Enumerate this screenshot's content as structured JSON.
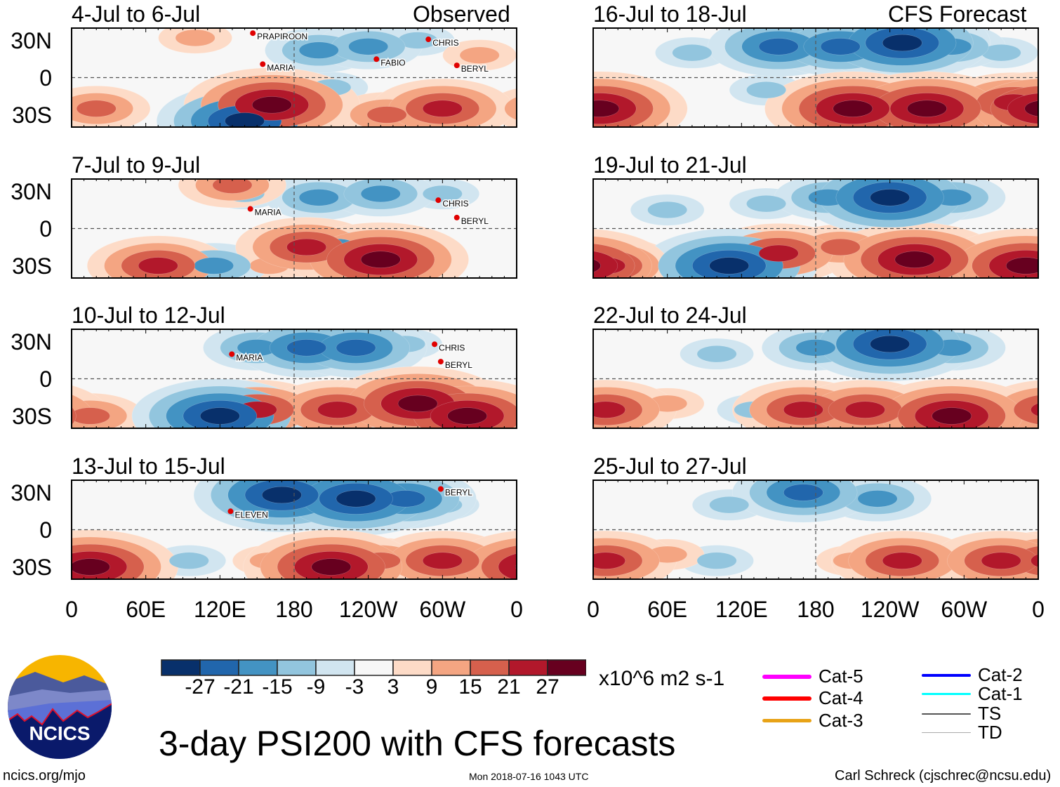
{
  "colors": {
    "levels": [
      -27,
      -21,
      -15,
      -9,
      -3,
      3,
      9,
      15,
      21,
      27
    ],
    "fills": [
      "#08306b",
      "#2166ac",
      "#4393c3",
      "#92c5de",
      "#d1e5f0",
      "#f7f7f7",
      "#fddbc7",
      "#f4a582",
      "#d6604d",
      "#b2182b",
      "#67001f"
    ]
  },
  "columns": {
    "observed_label": "Observed",
    "forecast_label": "CFS Forecast"
  },
  "y_ticks": [
    "30N",
    "0",
    "30S"
  ],
  "x_ticks": [
    "0",
    "60E",
    "120E",
    "180",
    "120W",
    "60W",
    "0"
  ],
  "chart_data": [
    {
      "title": "4-Jul to 6-Jul",
      "column": "observed",
      "centers": [
        [
          200,
          22,
          -15
        ],
        [
          240,
          25,
          -15
        ],
        [
          280,
          30,
          -9
        ],
        [
          210,
          -8,
          -9
        ],
        [
          140,
          -35,
          -27
        ],
        [
          162,
          -22,
          27
        ],
        [
          255,
          -30,
          15
        ],
        [
          300,
          -25,
          21
        ],
        [
          20,
          -25,
          15
        ],
        [
          100,
          32,
          9
        ],
        [
          330,
          18,
          9
        ]
      ],
      "storms": [
        {
          "name": "PRAPIROON",
          "lon": 150,
          "lat": 33
        },
        {
          "name": "MARIA",
          "lon": 158,
          "lat": 8
        },
        {
          "name": "FABIO",
          "lon": 250,
          "lat": 12
        },
        {
          "name": "CHRIS",
          "lon": 292,
          "lat": 28
        },
        {
          "name": "BERYL",
          "lon": 315,
          "lat": 7
        }
      ]
    },
    {
      "title": "7-Jul to 9-Jul",
      "column": "observed",
      "centers": [
        [
          200,
          25,
          -15
        ],
        [
          250,
          28,
          -15
        ],
        [
          140,
          28,
          -9
        ],
        [
          300,
          28,
          -9
        ],
        [
          250,
          -25,
          27
        ],
        [
          190,
          -15,
          21
        ],
        [
          215,
          -15,
          -15
        ],
        [
          115,
          -30,
          -15
        ],
        [
          70,
          -30,
          21
        ],
        [
          130,
          35,
          15
        ],
        [
          160,
          -30,
          9
        ]
      ],
      "storms": [
        {
          "name": "CHRIS",
          "lon": 300,
          "lat": 20
        },
        {
          "name": "MARIA",
          "lon": 148,
          "lat": 13
        },
        {
          "name": "BERYL",
          "lon": 315,
          "lat": 6
        }
      ]
    },
    {
      "title": "10-Jul to 12-Jul",
      "column": "observed",
      "centers": [
        [
          190,
          25,
          -21
        ],
        [
          230,
          25,
          -21
        ],
        [
          150,
          25,
          -15
        ],
        [
          270,
          28,
          -9
        ],
        [
          120,
          -30,
          -27
        ],
        [
          150,
          -25,
          21
        ],
        [
          215,
          -25,
          21
        ],
        [
          255,
          -20,
          -15
        ],
        [
          280,
          -20,
          27
        ],
        [
          320,
          -30,
          27
        ],
        [
          15,
          -30,
          15
        ]
      ],
      "storms": [
        {
          "name": "CHRIS",
          "lon": 297,
          "lat": 25
        },
        {
          "name": "MARIA",
          "lon": 133,
          "lat": 17
        },
        {
          "name": "BERYL",
          "lon": 302,
          "lat": 11
        }
      ]
    },
    {
      "title": "13-Jul to 15-Jul",
      "column": "observed",
      "centers": [
        [
          170,
          28,
          -27
        ],
        [
          230,
          25,
          -27
        ],
        [
          270,
          25,
          -21
        ],
        [
          300,
          20,
          -9
        ],
        [
          15,
          -30,
          27
        ],
        [
          210,
          -30,
          27
        ],
        [
          300,
          -25,
          21
        ],
        [
          95,
          -25,
          -9
        ],
        [
          160,
          -25,
          9
        ],
        [
          250,
          -25,
          15
        ]
      ],
      "storms": [
        {
          "name": "BERYL",
          "lon": 302,
          "lat": 30
        },
        {
          "name": "ELEVEN",
          "lon": 132,
          "lat": 12
        }
      ]
    },
    {
      "title": "16-Jul to 18-Jul",
      "column": "forecast",
      "centers": [
        [
          150,
          25,
          -21
        ],
        [
          200,
          25,
          -21
        ],
        [
          250,
          28,
          -27
        ],
        [
          290,
          25,
          -15
        ],
        [
          330,
          20,
          -9
        ],
        [
          210,
          -25,
          27
        ],
        [
          270,
          -25,
          27
        ],
        [
          5,
          -25,
          27
        ],
        [
          340,
          -20,
          21
        ],
        [
          140,
          -10,
          -9
        ],
        [
          80,
          20,
          -9
        ]
      ],
      "storms": []
    },
    {
      "title": "19-Jul to 21-Jul",
      "column": "forecast",
      "centers": [
        [
          190,
          25,
          -15
        ],
        [
          240,
          25,
          -27
        ],
        [
          290,
          25,
          -15
        ],
        [
          110,
          -30,
          -27
        ],
        [
          150,
          -20,
          21
        ],
        [
          200,
          -15,
          15
        ],
        [
          260,
          -25,
          27
        ],
        [
          350,
          -30,
          27
        ],
        [
          10,
          -30,
          21
        ],
        [
          60,
          15,
          -9
        ],
        [
          140,
          20,
          -9
        ]
      ],
      "storms": []
    },
    {
      "title": "22-Jul to 24-Jul",
      "column": "forecast",
      "centers": [
        [
          180,
          25,
          -15
        ],
        [
          240,
          28,
          -27
        ],
        [
          290,
          25,
          -15
        ],
        [
          100,
          20,
          -9
        ],
        [
          170,
          -25,
          21
        ],
        [
          220,
          -25,
          21
        ],
        [
          290,
          -30,
          27
        ],
        [
          10,
          -25,
          21
        ],
        [
          130,
          -25,
          -9
        ],
        [
          60,
          -20,
          9
        ]
      ],
      "storms": []
    },
    {
      "title": "25-Jul to 27-Jul",
      "column": "forecast",
      "centers": [
        [
          170,
          30,
          -21
        ],
        [
          230,
          25,
          -15
        ],
        [
          110,
          20,
          -9
        ],
        [
          100,
          -25,
          -9
        ],
        [
          10,
          -25,
          21
        ],
        [
          250,
          -25,
          21
        ],
        [
          330,
          -25,
          21
        ],
        [
          210,
          -25,
          9
        ],
        [
          60,
          -20,
          9
        ]
      ],
      "storms": []
    }
  ],
  "colorbar": {
    "tick_labels": [
      "-27",
      "-21",
      "-15",
      "-9",
      "-3",
      "3",
      "9",
      "15",
      "21",
      "27"
    ],
    "units": "x10^6 m2 s-1"
  },
  "legend": [
    {
      "label": "Cat-5",
      "color": "#ff00ff"
    },
    {
      "label": "Cat-4",
      "color": "#ff0000"
    },
    {
      "label": "Cat-3",
      "color": "#e8a317"
    },
    {
      "label": "Cat-2",
      "color": "#0000ff"
    },
    {
      "label": "Cat-1",
      "color": "#00ffff"
    },
    {
      "label": "TS",
      "color": "#555555"
    },
    {
      "label": "TD",
      "color": "#aaaaaa"
    }
  ],
  "main_title": "3-day PSI200 with CFS forecasts",
  "logo_text": "NCICS",
  "footer": {
    "url": "ncics.org/mjo",
    "timestamp": "Mon 2018-07-16 1043 UTC",
    "credit": "Carl Schreck (cjschrec@ncsu.edu)"
  }
}
